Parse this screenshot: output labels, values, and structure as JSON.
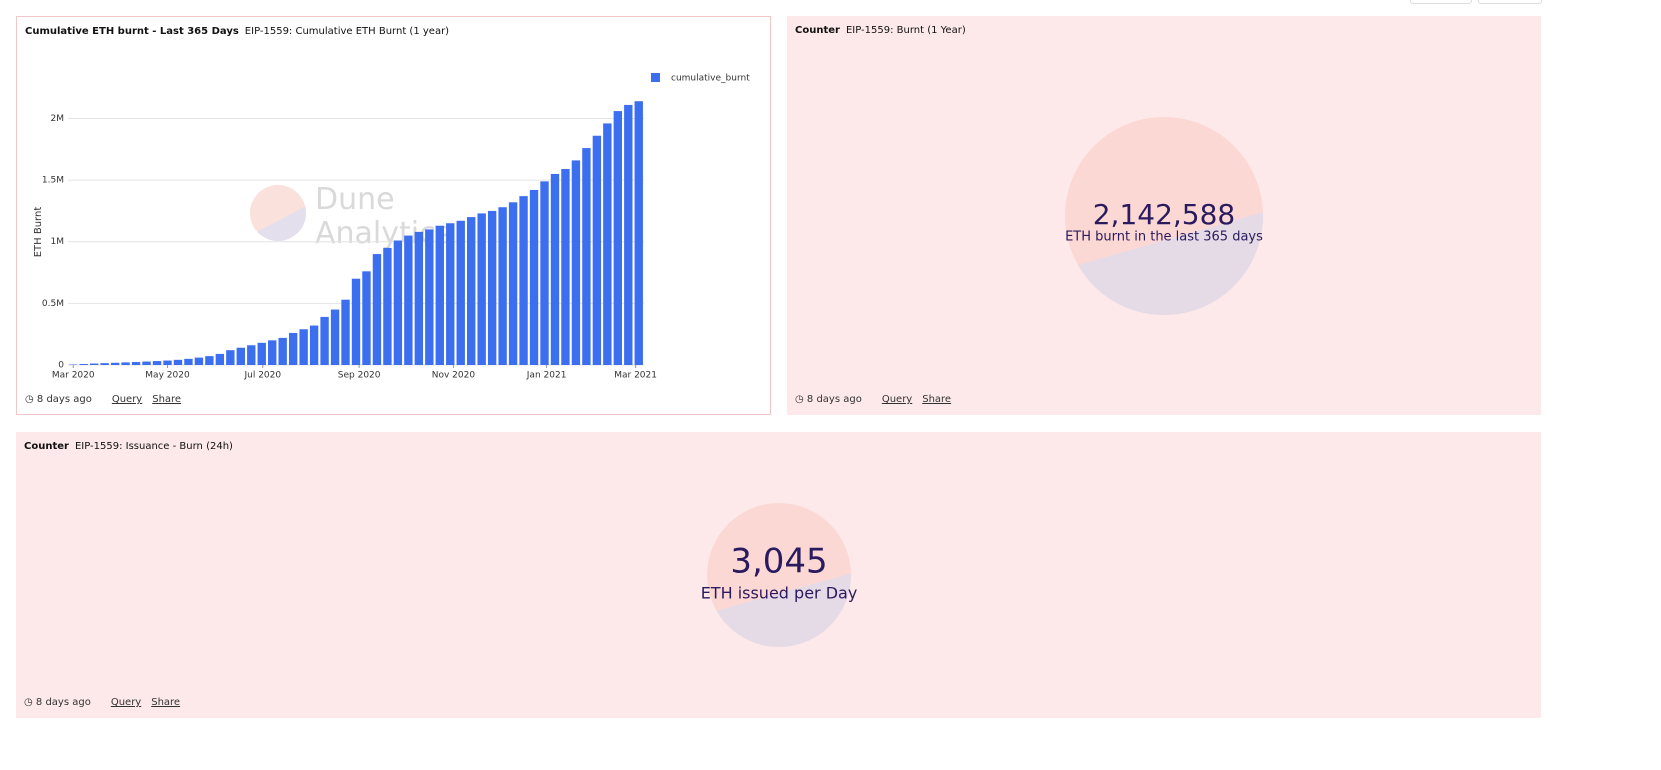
{
  "panels": [
    {
      "kind": "Cumulative ETH burnt - Last 365 Days",
      "title": "EIP-1559: Cumulative ETH Burnt (1 year)",
      "watermark": [
        "Dune",
        "Analytics"
      ],
      "footer": {
        "time": "8 days ago",
        "query": "Query",
        "share": "Share"
      }
    },
    {
      "kind": "Counter",
      "title": "EIP-1559: Burnt (1 Year)",
      "value": "2,142,588",
      "label": "ETH burnt in the last 365 days",
      "footer": {
        "time": "8 days ago",
        "query": "Query",
        "share": "Share"
      }
    },
    {
      "kind": "Counter",
      "title": "EIP-1559: Issuance - Burn (24h)",
      "value": "3,045",
      "label": "ETH issued per Day",
      "footer": {
        "time": "8 days ago",
        "query": "Query",
        "share": "Share"
      }
    }
  ],
  "chart_data": {
    "type": "bar",
    "y_label": "ETH Burnt",
    "grid": true,
    "legend": "top-right",
    "categories": [
      null,
      null,
      null,
      null,
      null,
      null,
      null,
      null,
      null,
      null,
      null,
      null,
      null,
      null,
      null,
      null,
      null,
      null,
      null,
      null,
      null,
      null,
      null,
      null,
      null,
      null,
      null,
      null,
      null,
      null,
      null,
      null,
      null,
      null,
      null,
      null,
      null,
      null,
      null,
      null,
      null,
      null,
      null,
      null,
      null,
      null,
      null,
      null,
      null,
      null,
      null,
      null,
      null,
      null,
      null
    ],
    "series": [
      {
        "name": "cumulative_burnt",
        "color": "#3c6ef0",
        "values": [
          4000,
          8000,
          12000,
          15000,
          18000,
          21000,
          24000,
          28000,
          32000,
          36000,
          42000,
          50000,
          60000,
          72000,
          90000,
          120000,
          140000,
          160000,
          180000,
          200000,
          220000,
          260000,
          290000,
          320000,
          390000,
          450000,
          530000,
          700000,
          760000,
          900000,
          950000,
          1010000,
          1050000,
          1080000,
          1100000,
          1130000,
          1150000,
          1170000,
          1200000,
          1230000,
          1250000,
          1280000,
          1320000,
          1370000,
          1420000,
          1490000,
          1550000,
          1590000,
          1660000,
          1760000,
          1860000,
          1960000,
          2060000,
          2110000,
          2140000
        ]
      }
    ],
    "ylim": [
      0,
      2150000
    ],
    "yticks": [
      0,
      {
        "value": 500000,
        "label": "0.5M"
      },
      {
        "value": 1000000,
        "label": "1M"
      },
      {
        "value": 1500000,
        "label": "1.5M"
      },
      {
        "value": 2000000,
        "label": "2M"
      }
    ],
    "xlim": [
      -0.5,
      54.5
    ],
    "xticks": [
      {
        "value": 0,
        "label": "Mar 2020"
      },
      {
        "value": 9,
        "label": "May 2020"
      },
      {
        "value": 18.1,
        "label": "Jul 2020"
      },
      {
        "value": 27.3,
        "label": "Sep 2020"
      },
      {
        "value": 36.3,
        "label": "Nov 2020"
      },
      {
        "value": 45.2,
        "label": "Jan 2021"
      },
      {
        "value": 53.7,
        "label": "Mar 2021"
      }
    ]
  }
}
